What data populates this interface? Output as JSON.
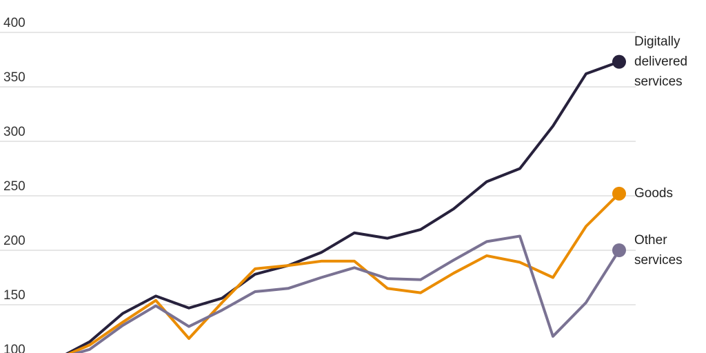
{
  "chart_data": {
    "type": "line",
    "categories": [
      null,
      null,
      null,
      null,
      null,
      null,
      null,
      null,
      null,
      null,
      null,
      null,
      null,
      null,
      null,
      null,
      null,
      null
    ],
    "series": [
      {
        "name": "Digitally delivered services",
        "color": "#27213c",
        "values": [
          100,
          116,
          142,
          158,
          147,
          156,
          178,
          186,
          198,
          216,
          211,
          219,
          238,
          263,
          275,
          314,
          362,
          373
        ]
      },
      {
        "name": "Goods",
        "color": "#ea8c00",
        "values": [
          100,
          113,
          134,
          154,
          119,
          152,
          183,
          186,
          190,
          190,
          165,
          161,
          179,
          195,
          189,
          175,
          222,
          252
        ]
      },
      {
        "name": "Other services",
        "color": "#7a7293",
        "values": [
          100,
          109,
          131,
          149,
          130,
          145,
          162,
          165,
          175,
          184,
          174,
          173,
          191,
          208,
          213,
          121,
          152,
          200
        ]
      }
    ],
    "ylim": [
      100,
      400
    ],
    "yticks": [
      100,
      150,
      200,
      250,
      300,
      350,
      400
    ],
    "grid": true
  }
}
